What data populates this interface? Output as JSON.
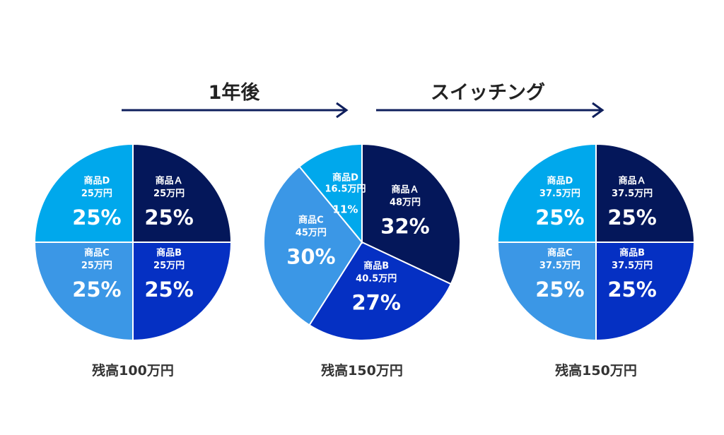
{
  "colors": {
    "arrow": "#0f1f5c",
    "product_a": "#04175a",
    "product_b": "#0530c3",
    "product_c": "#3b97e6",
    "product_d": "#00a8ec"
  },
  "arrows": [
    {
      "label": "1年後"
    },
    {
      "label": "スイッチング"
    }
  ],
  "chart_data": [
    {
      "type": "pie",
      "caption": "残高100万円",
      "slices": [
        {
          "name": "商品Ａ",
          "amount": "25万円",
          "value": 25,
          "percent": "25%",
          "color_key": "product_a"
        },
        {
          "name": "商品B",
          "amount": "25万円",
          "value": 25,
          "percent": "25%",
          "color_key": "product_b"
        },
        {
          "name": "商品C",
          "amount": "25万円",
          "value": 25,
          "percent": "25%",
          "color_key": "product_c"
        },
        {
          "name": "商品D",
          "amount": "25万円",
          "value": 25,
          "percent": "25%",
          "color_key": "product_d"
        }
      ]
    },
    {
      "type": "pie",
      "caption": "残高150万円",
      "slices": [
        {
          "name": "商品Ａ",
          "amount": "48万円",
          "value": 48,
          "percent": "32%",
          "color_key": "product_a"
        },
        {
          "name": "商品B",
          "amount": "40.5万円",
          "value": 40.5,
          "percent": "27%",
          "color_key": "product_b"
        },
        {
          "name": "商品C",
          "amount": "45万円",
          "value": 45,
          "percent": "30%",
          "color_key": "product_c"
        },
        {
          "name": "商品D",
          "amount": "16.5万円",
          "value": 16.5,
          "percent": "11%",
          "color_key": "product_d"
        }
      ]
    },
    {
      "type": "pie",
      "caption": "残高150万円",
      "slices": [
        {
          "name": "商品Ａ",
          "amount": "37.5万円",
          "value": 37.5,
          "percent": "25%",
          "color_key": "product_a"
        },
        {
          "name": "商品B",
          "amount": "37.5万円",
          "value": 37.5,
          "percent": "25%",
          "color_key": "product_b"
        },
        {
          "name": "商品C",
          "amount": "37.5万円",
          "value": 37.5,
          "percent": "25%",
          "color_key": "product_c"
        },
        {
          "name": "商品D",
          "amount": "37.5万円",
          "value": 37.5,
          "percent": "25%",
          "color_key": "product_d"
        }
      ]
    }
  ]
}
